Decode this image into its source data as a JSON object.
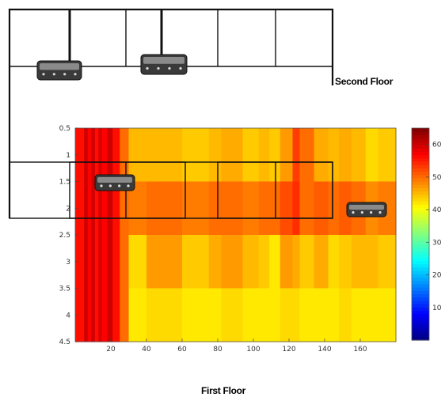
{
  "labels": {
    "second_floor": "Second Floor",
    "first_floor": "First Floor"
  },
  "chart_data": {
    "type": "heatmap",
    "title": "",
    "xlabel": "",
    "ylabel": "",
    "x_ticks": [
      20,
      40,
      60,
      80,
      100,
      120,
      140,
      160
    ],
    "y_ticks": [
      0.5,
      1,
      1.5,
      2,
      2.5,
      3,
      3.5,
      4,
      4.5
    ],
    "xlim": [
      0,
      180
    ],
    "ylim": [
      0.5,
      4.5
    ],
    "colorbar": {
      "ticks": [
        10,
        20,
        30,
        40,
        50,
        60
      ],
      "range": [
        0,
        65
      ],
      "colormap": "jet"
    },
    "grid": false,
    "column_boundaries": [
      0,
      5,
      7,
      9,
      11,
      13,
      15,
      18,
      21,
      25,
      30,
      40,
      60,
      75,
      82,
      94,
      103,
      109,
      115,
      122,
      126,
      134,
      142,
      148,
      155,
      163,
      170,
      180
    ],
    "row_boundaries": [
      0.5,
      1.5,
      2.5,
      3.5,
      4.5
    ],
    "values": [
      [
        56,
        60,
        57,
        60,
        56,
        59,
        57,
        60,
        56,
        50,
        45,
        45,
        44,
        45,
        46,
        44,
        45,
        44,
        47,
        53,
        50,
        46,
        45,
        46,
        45,
        43,
        44
      ],
      [
        56,
        60,
        57,
        60,
        56,
        59,
        57,
        60,
        56,
        50,
        49,
        50,
        49,
        50,
        50,
        49,
        50,
        50,
        52,
        54,
        50,
        51,
        50,
        51,
        50,
        48,
        49
      ],
      [
        56,
        60,
        57,
        60,
        56,
        59,
        57,
        60,
        56,
        50,
        43,
        47,
        44,
        46,
        47,
        45,
        44,
        42,
        47,
        46,
        44,
        46,
        43,
        44,
        45,
        45,
        44
      ],
      [
        56,
        60,
        57,
        60,
        56,
        59,
        57,
        60,
        56,
        50,
        42,
        43,
        42,
        42,
        43,
        42,
        42,
        42,
        43,
        43,
        42,
        42,
        42,
        43,
        42,
        42,
        42
      ]
    ]
  }
}
